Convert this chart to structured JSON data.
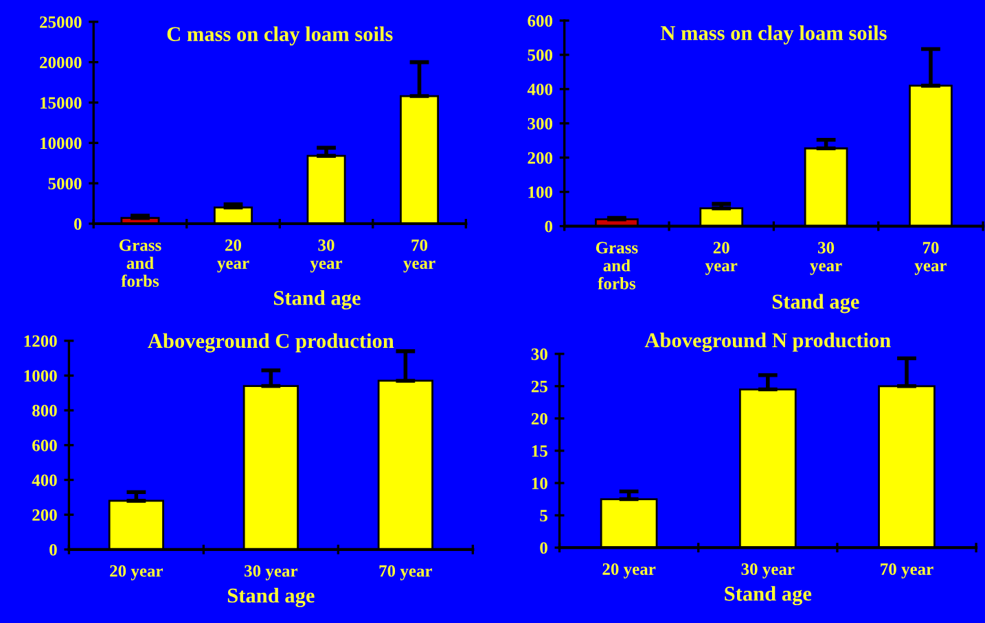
{
  "chart_data": [
    {
      "type": "bar",
      "title": "C mass on clay loam soils",
      "xlabel": "Stand age",
      "categories": [
        "Grass\nand\nforbs",
        "20\nyear",
        "30\nyear",
        "70\nyear"
      ],
      "values": [
        700,
        2000,
        8400,
        15800
      ],
      "errors": [
        [
          700,
          1000
        ],
        [
          2000,
          2400
        ],
        [
          8400,
          9400
        ],
        [
          15800,
          20000
        ]
      ],
      "colors": [
        "#cc0000",
        "#ffff00",
        "#ffff00",
        "#ffff00"
      ],
      "ylim": [
        0,
        25000
      ],
      "yticks": [
        0,
        5000,
        10000,
        15000,
        20000,
        25000
      ],
      "grid": false,
      "legend": false
    },
    {
      "type": "bar",
      "title": "N mass on clay loam soils",
      "xlabel": "Stand age",
      "categories": [
        "Grass\nand\nforbs",
        "20\nyear",
        "30\nyear",
        "70\nyear"
      ],
      "values": [
        20,
        52,
        227,
        410
      ],
      "errors": [
        [
          20,
          24
        ],
        [
          52,
          65
        ],
        [
          227,
          252
        ],
        [
          410,
          517
        ]
      ],
      "colors": [
        "#cc0000",
        "#ffff00",
        "#ffff00",
        "#ffff00"
      ],
      "ylim": [
        0,
        600
      ],
      "yticks": [
        0,
        100,
        200,
        300,
        400,
        500,
        600
      ],
      "grid": false,
      "legend": false
    },
    {
      "type": "bar",
      "title": "Aboveground C production",
      "xlabel": "Stand age",
      "categories": [
        "20 year",
        "30 year",
        "70 year"
      ],
      "values": [
        280,
        940,
        970
      ],
      "errors": [
        [
          280,
          330
        ],
        [
          940,
          1030
        ],
        [
          970,
          1140
        ]
      ],
      "colors": [
        "#ffff00",
        "#ffff00",
        "#ffff00"
      ],
      "ylim": [
        0,
        1200
      ],
      "yticks": [
        0,
        200,
        400,
        600,
        800,
        1000,
        1200
      ],
      "grid": false,
      "legend": false
    },
    {
      "type": "bar",
      "title": "Aboveground N production",
      "xlabel": "Stand age",
      "categories": [
        "20 year",
        "30 year",
        "70 year"
      ],
      "values": [
        7.5,
        24.5,
        25
      ],
      "errors": [
        [
          7.5,
          8.7
        ],
        [
          24.5,
          26.7
        ],
        [
          25,
          29.3
        ]
      ],
      "colors": [
        "#ffff00",
        "#ffff00",
        "#ffff00"
      ],
      "ylim": [
        0,
        30
      ],
      "yticks": [
        0,
        5,
        10,
        15,
        20,
        25,
        30
      ],
      "grid": false,
      "legend": false
    }
  ]
}
